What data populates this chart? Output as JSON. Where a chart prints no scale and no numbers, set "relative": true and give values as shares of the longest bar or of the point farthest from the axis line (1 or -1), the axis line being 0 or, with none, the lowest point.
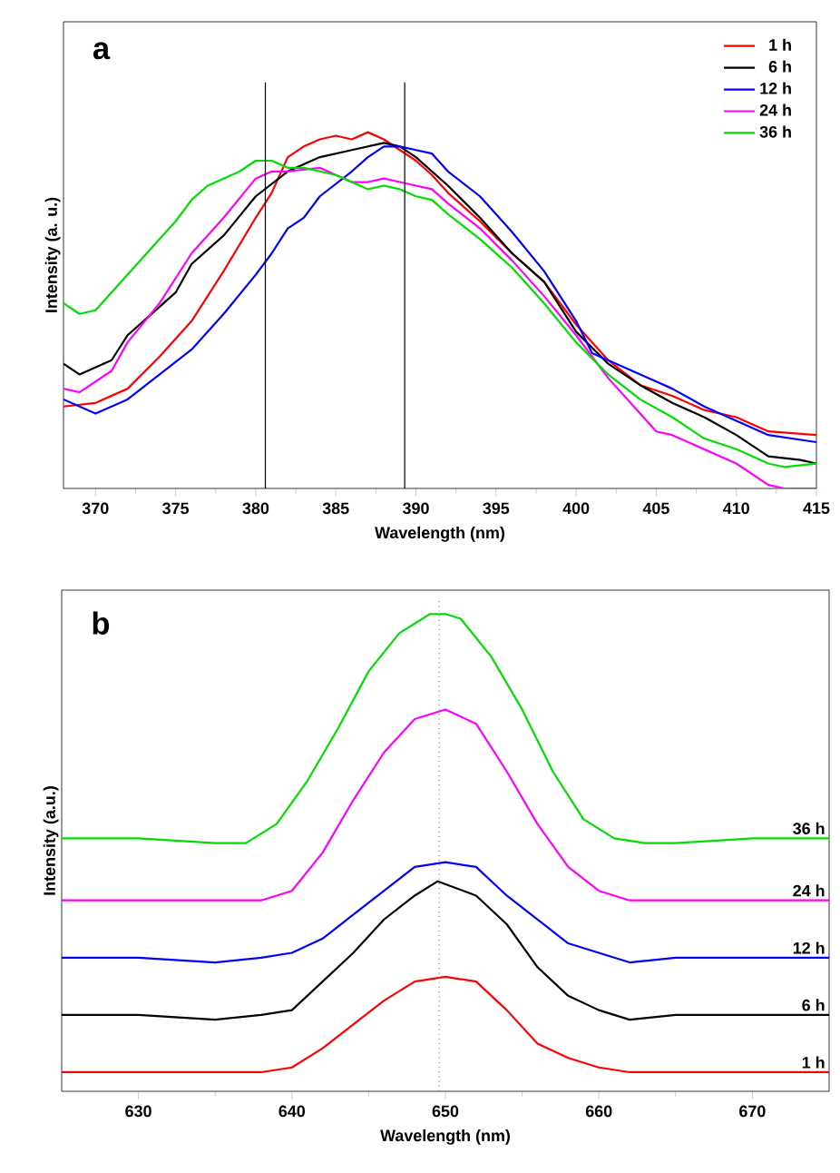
{
  "chart_data": [
    {
      "type": "line",
      "title": "a",
      "xlabel": "Wavelength (nm)",
      "ylabel": "Intensity (a. u.)",
      "relative": true,
      "xlim": [
        368,
        415
      ],
      "xticks": [
        370,
        375,
        380,
        385,
        390,
        395,
        400,
        405,
        410,
        415
      ],
      "legend": "top right",
      "series": [
        {
          "name": "1 h",
          "color": "#ff0000",
          "x": [
            368,
            370,
            372,
            374,
            376,
            378,
            380,
            381,
            382,
            383,
            384,
            385,
            386,
            387,
            388,
            389,
            390,
            391,
            392,
            394,
            396,
            398,
            400,
            402,
            404,
            406,
            408,
            410,
            412,
            415
          ],
          "values": [
            0.23,
            0.24,
            0.28,
            0.37,
            0.47,
            0.61,
            0.76,
            0.83,
            0.93,
            0.96,
            0.98,
            0.99,
            0.98,
            1.0,
            0.98,
            0.95,
            0.92,
            0.88,
            0.83,
            0.75,
            0.66,
            0.58,
            0.46,
            0.36,
            0.29,
            0.26,
            0.22,
            0.2,
            0.16,
            0.15
          ]
        },
        {
          "name": "6 h",
          "color": "#000000",
          "x": [
            368,
            369,
            371,
            372,
            374,
            375,
            376,
            378,
            380,
            382,
            384,
            386,
            388,
            389,
            390,
            392,
            394,
            396,
            398,
            400,
            402,
            404,
            406,
            408,
            410,
            412,
            414,
            415
          ],
          "values": [
            0.35,
            0.32,
            0.36,
            0.43,
            0.51,
            0.55,
            0.63,
            0.71,
            0.82,
            0.89,
            0.93,
            0.95,
            0.97,
            0.96,
            0.93,
            0.85,
            0.76,
            0.66,
            0.58,
            0.44,
            0.35,
            0.29,
            0.24,
            0.2,
            0.15,
            0.09,
            0.08,
            0.07
          ]
        },
        {
          "name": "12 h",
          "color": "#0000ff",
          "x": [
            368,
            370,
            372,
            374,
            376,
            378,
            380,
            381,
            382,
            383,
            384,
            386,
            387,
            388,
            389,
            390,
            391,
            392,
            394,
            396,
            398,
            400,
            401,
            403,
            405,
            406,
            408,
            410,
            412,
            415
          ],
          "values": [
            0.25,
            0.21,
            0.25,
            0.32,
            0.39,
            0.49,
            0.6,
            0.66,
            0.73,
            0.76,
            0.82,
            0.89,
            0.93,
            0.96,
            0.96,
            0.95,
            0.94,
            0.89,
            0.82,
            0.72,
            0.61,
            0.47,
            0.38,
            0.34,
            0.3,
            0.28,
            0.23,
            0.19,
            0.15,
            0.13
          ]
        },
        {
          "name": "24 h",
          "color": "#ff00ff",
          "x": [
            368,
            369,
            371,
            372,
            374,
            376,
            378,
            380,
            381,
            382,
            384,
            385,
            386,
            387,
            388,
            389,
            390,
            391,
            392,
            394,
            396,
            398,
            400,
            402,
            404,
            405,
            406,
            408,
            410,
            412,
            413,
            415
          ],
          "values": [
            0.28,
            0.27,
            0.33,
            0.41,
            0.52,
            0.66,
            0.76,
            0.87,
            0.89,
            0.89,
            0.9,
            0.88,
            0.86,
            0.86,
            0.87,
            0.86,
            0.85,
            0.84,
            0.8,
            0.73,
            0.64,
            0.54,
            0.43,
            0.31,
            0.21,
            0.16,
            0.15,
            0.11,
            0.07,
            0.01,
            0.0,
            0.0
          ]
        },
        {
          "name": "36 h",
          "color": "#00dd00",
          "x": [
            368,
            369,
            370,
            372,
            374,
            375,
            376,
            377,
            378,
            379,
            380,
            381,
            382,
            383,
            384,
            385,
            386,
            387,
            388,
            389,
            390,
            391,
            392,
            394,
            396,
            398,
            400,
            402,
            404,
            406,
            408,
            410,
            412,
            413,
            415
          ],
          "values": [
            0.52,
            0.49,
            0.5,
            0.6,
            0.7,
            0.75,
            0.81,
            0.85,
            0.87,
            0.89,
            0.92,
            0.92,
            0.9,
            0.9,
            0.89,
            0.88,
            0.86,
            0.84,
            0.85,
            0.84,
            0.82,
            0.81,
            0.77,
            0.7,
            0.62,
            0.52,
            0.41,
            0.32,
            0.25,
            0.2,
            0.14,
            0.11,
            0.07,
            0.06,
            0.07
          ]
        }
      ],
      "ref_lines": [
        {
          "axis": "x",
          "value": 380.6,
          "color": "#000000"
        },
        {
          "axis": "x",
          "value": 389.3,
          "color": "#000000"
        }
      ]
    },
    {
      "type": "line",
      "title": "b",
      "xlabel": "Wavelength (nm)",
      "ylabel": "Intensity (a.u.)",
      "relative": true,
      "xlim": [
        625,
        675
      ],
      "xticks": [
        630,
        640,
        650,
        660,
        670
      ],
      "series": [
        {
          "name": "1 h",
          "color": "#ff0000",
          "x": [
            625,
            630,
            635,
            638,
            640,
            642,
            644,
            646,
            648,
            650,
            652,
            654,
            656,
            658,
            660,
            662,
            665,
            670,
            675
          ],
          "values": [
            0.04,
            0.04,
            0.04,
            0.04,
            0.05,
            0.09,
            0.14,
            0.19,
            0.23,
            0.24,
            0.23,
            0.17,
            0.1,
            0.07,
            0.05,
            0.04,
            0.04,
            0.04,
            0.04
          ]
        },
        {
          "name": "6 h",
          "color": "#000000",
          "x": [
            625,
            630,
            635,
            638,
            640,
            642,
            644,
            646,
            648,
            649.5,
            652,
            654,
            656,
            658,
            660,
            662,
            665,
            670,
            675
          ],
          "values": [
            0.16,
            0.16,
            0.15,
            0.16,
            0.17,
            0.23,
            0.29,
            0.36,
            0.41,
            0.44,
            0.41,
            0.35,
            0.26,
            0.2,
            0.17,
            0.15,
            0.16,
            0.16,
            0.16
          ]
        },
        {
          "name": "12 h",
          "color": "#0000ff",
          "x": [
            625,
            630,
            635,
            638,
            640,
            642,
            644,
            646,
            648,
            650,
            652,
            654,
            656,
            658,
            660,
            662,
            665,
            670,
            675
          ],
          "values": [
            0.28,
            0.28,
            0.27,
            0.28,
            0.29,
            0.32,
            0.37,
            0.42,
            0.47,
            0.48,
            0.47,
            0.41,
            0.36,
            0.31,
            0.29,
            0.27,
            0.28,
            0.28,
            0.28
          ]
        },
        {
          "name": "24 h",
          "color": "#ff00ff",
          "x": [
            625,
            630,
            635,
            638,
            640,
            642,
            644,
            646,
            648,
            650,
            652,
            654,
            656,
            658,
            660,
            662,
            665,
            670,
            675
          ],
          "values": [
            0.4,
            0.4,
            0.4,
            0.4,
            0.42,
            0.5,
            0.61,
            0.71,
            0.78,
            0.8,
            0.77,
            0.67,
            0.56,
            0.47,
            0.42,
            0.4,
            0.4,
            0.4,
            0.4
          ]
        },
        {
          "name": "36 h",
          "color": "#00dd00",
          "x": [
            625,
            630,
            635,
            637,
            639,
            641,
            643,
            645,
            647,
            649,
            650,
            651,
            653,
            655,
            657,
            659,
            661,
            663,
            665,
            670,
            675
          ],
          "values": [
            0.53,
            0.53,
            0.52,
            0.52,
            0.56,
            0.65,
            0.76,
            0.88,
            0.96,
            1.0,
            1.0,
            0.99,
            0.91,
            0.8,
            0.67,
            0.57,
            0.53,
            0.52,
            0.52,
            0.53,
            0.53
          ]
        }
      ],
      "ref_lines": [
        {
          "axis": "x",
          "value": 649.6,
          "color": "#888888",
          "line_style": "dotted"
        }
      ]
    }
  ]
}
